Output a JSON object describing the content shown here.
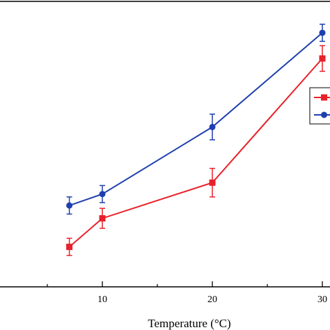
{
  "chart_data": {
    "type": "line",
    "title": "",
    "xlabel": "Temperature (°C)",
    "ylabel": "",
    "xlim": [
      0,
      30
    ],
    "x_ticks_major": [
      10,
      20,
      30
    ],
    "x_ticks_major_labels": [
      "10",
      "20",
      "30"
    ],
    "x_ticks_minor": [
      5,
      15,
      25
    ],
    "ylim": [
      0,
      100
    ],
    "grid": false,
    "legend": {
      "placement": "right",
      "entries": [
        "",
        ""
      ]
    },
    "series": [
      {
        "marker": "square",
        "color": "#e8212a",
        "x": [
          7,
          10,
          20,
          30
        ],
        "y": [
          14,
          24,
          36.5,
          80
        ],
        "error": [
          3,
          3.5,
          5,
          4.5
        ]
      },
      {
        "marker": "circle",
        "color": "#1f3fae",
        "x": [
          7,
          10,
          20,
          30
        ],
        "y": [
          28.5,
          32.5,
          56,
          89
        ],
        "error": [
          3,
          3,
          4.5,
          3
        ]
      }
    ]
  }
}
